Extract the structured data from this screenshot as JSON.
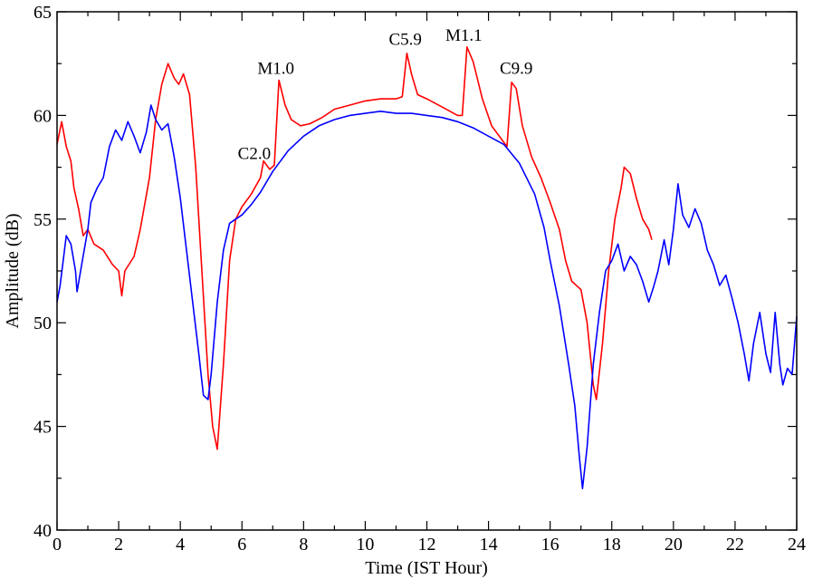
{
  "chart_data": {
    "type": "line",
    "title": "",
    "xlabel": "Time (IST Hour)",
    "ylabel": "Amplitude (dB)",
    "xlim": [
      0,
      24
    ],
    "ylim": [
      40,
      65
    ],
    "x_ticks": [
      "0",
      "2",
      "4",
      "6",
      "8",
      "10",
      "12",
      "14",
      "16",
      "18",
      "20",
      "22",
      "24"
    ],
    "y_ticks": [
      "40",
      "45",
      "50",
      "55",
      "60",
      "65"
    ],
    "grid": false,
    "legend": "none",
    "series": [
      {
        "color": "#ff0000",
        "points": [
          [
            0.0,
            58.6
          ],
          [
            0.15,
            59.7
          ],
          [
            0.3,
            58.5
          ],
          [
            0.45,
            57.8
          ],
          [
            0.55,
            56.5
          ],
          [
            0.7,
            55.5
          ],
          [
            0.85,
            54.2
          ],
          [
            1.0,
            54.5
          ],
          [
            1.2,
            53.8
          ],
          [
            1.5,
            53.5
          ],
          [
            1.8,
            52.8
          ],
          [
            2.0,
            52.5
          ],
          [
            2.1,
            51.3
          ],
          [
            2.2,
            52.5
          ],
          [
            2.5,
            53.2
          ],
          [
            2.7,
            54.5
          ],
          [
            3.0,
            57.0
          ],
          [
            3.2,
            59.8
          ],
          [
            3.4,
            61.5
          ],
          [
            3.6,
            62.5
          ],
          [
            3.8,
            61.8
          ],
          [
            3.95,
            61.5
          ],
          [
            4.1,
            62.0
          ],
          [
            4.3,
            61.0
          ],
          [
            4.5,
            57.5
          ],
          [
            4.7,
            52.5
          ],
          [
            4.9,
            47.5
          ],
          [
            5.05,
            45.0
          ],
          [
            5.2,
            43.9
          ],
          [
            5.4,
            48.0
          ],
          [
            5.6,
            53.0
          ],
          [
            5.8,
            55.0
          ],
          [
            6.0,
            55.6
          ],
          [
            6.3,
            56.2
          ],
          [
            6.6,
            57.0
          ],
          [
            6.7,
            57.8
          ],
          [
            6.9,
            57.4
          ],
          [
            7.05,
            57.6
          ],
          [
            7.2,
            61.7
          ],
          [
            7.4,
            60.5
          ],
          [
            7.6,
            59.8
          ],
          [
            7.9,
            59.5
          ],
          [
            8.2,
            59.6
          ],
          [
            8.6,
            59.9
          ],
          [
            9.0,
            60.3
          ],
          [
            9.5,
            60.5
          ],
          [
            10.0,
            60.7
          ],
          [
            10.5,
            60.8
          ],
          [
            11.0,
            60.8
          ],
          [
            11.2,
            60.9
          ],
          [
            11.35,
            63.0
          ],
          [
            11.5,
            62.0
          ],
          [
            11.7,
            61.0
          ],
          [
            12.0,
            60.8
          ],
          [
            12.5,
            60.4
          ],
          [
            13.0,
            60.0
          ],
          [
            13.15,
            60.0
          ],
          [
            13.3,
            63.3
          ],
          [
            13.5,
            62.6
          ],
          [
            13.8,
            60.8
          ],
          [
            14.1,
            59.5
          ],
          [
            14.4,
            58.9
          ],
          [
            14.6,
            58.5
          ],
          [
            14.75,
            61.6
          ],
          [
            14.9,
            61.3
          ],
          [
            15.1,
            59.5
          ],
          [
            15.4,
            58.0
          ],
          [
            15.7,
            57.0
          ],
          [
            16.0,
            55.8
          ],
          [
            16.3,
            54.5
          ],
          [
            16.5,
            53.0
          ],
          [
            16.7,
            52.0
          ],
          [
            17.0,
            51.6
          ],
          [
            17.2,
            50.0
          ],
          [
            17.4,
            47.0
          ],
          [
            17.5,
            46.3
          ],
          [
            17.7,
            49.0
          ],
          [
            17.9,
            52.5
          ],
          [
            18.1,
            55.0
          ],
          [
            18.3,
            56.5
          ],
          [
            18.4,
            57.5
          ],
          [
            18.6,
            57.2
          ],
          [
            18.8,
            56.0
          ],
          [
            19.0,
            55.0
          ],
          [
            19.2,
            54.5
          ],
          [
            19.3,
            54.0
          ]
        ]
      },
      {
        "color": "#0000ff",
        "points": [
          [
            0.0,
            51.0
          ],
          [
            0.1,
            51.8
          ],
          [
            0.2,
            53.0
          ],
          [
            0.3,
            54.2
          ],
          [
            0.45,
            53.8
          ],
          [
            0.6,
            52.5
          ],
          [
            0.65,
            51.5
          ],
          [
            0.8,
            52.8
          ],
          [
            1.0,
            54.5
          ],
          [
            1.1,
            55.8
          ],
          [
            1.3,
            56.5
          ],
          [
            1.5,
            57.0
          ],
          [
            1.7,
            58.5
          ],
          [
            1.9,
            59.3
          ],
          [
            2.1,
            58.8
          ],
          [
            2.3,
            59.7
          ],
          [
            2.5,
            59.0
          ],
          [
            2.7,
            58.2
          ],
          [
            2.9,
            59.2
          ],
          [
            3.05,
            60.5
          ],
          [
            3.2,
            59.8
          ],
          [
            3.4,
            59.3
          ],
          [
            3.6,
            59.6
          ],
          [
            3.8,
            58.0
          ],
          [
            4.0,
            56.0
          ],
          [
            4.2,
            53.5
          ],
          [
            4.4,
            51.0
          ],
          [
            4.6,
            48.5
          ],
          [
            4.75,
            46.5
          ],
          [
            4.9,
            46.3
          ],
          [
            5.0,
            47.5
          ],
          [
            5.2,
            51.0
          ],
          [
            5.4,
            53.5
          ],
          [
            5.6,
            54.8
          ],
          [
            5.8,
            55.0
          ],
          [
            6.0,
            55.2
          ],
          [
            6.3,
            55.7
          ],
          [
            6.6,
            56.3
          ],
          [
            7.0,
            57.3
          ],
          [
            7.5,
            58.3
          ],
          [
            8.0,
            59.0
          ],
          [
            8.5,
            59.5
          ],
          [
            9.0,
            59.8
          ],
          [
            9.5,
            60.0
          ],
          [
            10.0,
            60.1
          ],
          [
            10.5,
            60.2
          ],
          [
            11.0,
            60.1
          ],
          [
            11.5,
            60.1
          ],
          [
            12.0,
            60.0
          ],
          [
            12.5,
            59.9
          ],
          [
            13.0,
            59.7
          ],
          [
            13.5,
            59.4
          ],
          [
            14.0,
            59.0
          ],
          [
            14.5,
            58.6
          ],
          [
            15.0,
            57.7
          ],
          [
            15.5,
            56.2
          ],
          [
            15.8,
            54.6
          ],
          [
            16.0,
            53.0
          ],
          [
            16.3,
            50.8
          ],
          [
            16.6,
            48.0
          ],
          [
            16.8,
            46.0
          ],
          [
            16.95,
            43.5
          ],
          [
            17.05,
            42.0
          ],
          [
            17.2,
            44.0
          ],
          [
            17.4,
            48.0
          ],
          [
            17.6,
            50.5
          ],
          [
            17.8,
            52.5
          ],
          [
            18.0,
            53.0
          ],
          [
            18.2,
            53.8
          ],
          [
            18.4,
            52.5
          ],
          [
            18.6,
            53.2
          ],
          [
            18.8,
            52.8
          ],
          [
            19.0,
            52.0
          ],
          [
            19.2,
            51.0
          ],
          [
            19.35,
            51.7
          ],
          [
            19.5,
            52.5
          ],
          [
            19.7,
            54.0
          ],
          [
            19.85,
            52.8
          ],
          [
            20.0,
            54.5
          ],
          [
            20.15,
            56.7
          ],
          [
            20.3,
            55.2
          ],
          [
            20.5,
            54.6
          ],
          [
            20.7,
            55.5
          ],
          [
            20.9,
            54.8
          ],
          [
            21.1,
            53.5
          ],
          [
            21.3,
            52.8
          ],
          [
            21.5,
            51.8
          ],
          [
            21.7,
            52.3
          ],
          [
            21.9,
            51.2
          ],
          [
            22.1,
            50.0
          ],
          [
            22.3,
            48.5
          ],
          [
            22.45,
            47.2
          ],
          [
            22.6,
            49.0
          ],
          [
            22.8,
            50.5
          ],
          [
            23.0,
            48.5
          ],
          [
            23.15,
            47.6
          ],
          [
            23.3,
            50.5
          ],
          [
            23.45,
            48.0
          ],
          [
            23.55,
            47.0
          ],
          [
            23.7,
            47.8
          ],
          [
            23.85,
            47.5
          ],
          [
            24.0,
            50.3
          ]
        ]
      }
    ],
    "annotations": [
      {
        "text": "C2.0",
        "x": 6.4,
        "y": 57.9
      },
      {
        "text": "M1.0",
        "x": 7.1,
        "y": 62.0
      },
      {
        "text": "C5.9",
        "x": 11.3,
        "y": 63.4
      },
      {
        "text": "M1.1",
        "x": 13.2,
        "y": 63.6
      },
      {
        "text": "C9.9",
        "x": 14.9,
        "y": 62.0
      }
    ]
  }
}
